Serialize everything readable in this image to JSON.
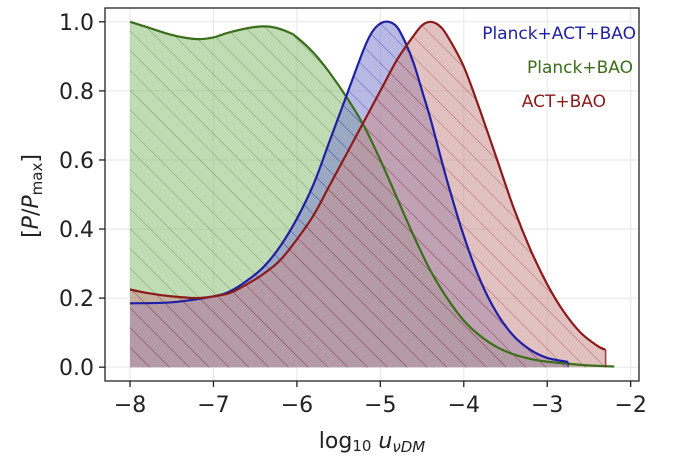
{
  "chart_data": {
    "type": "area",
    "xlabel": "log10 uνDM",
    "ylabel": "[P/Pmax]",
    "xlim": [
      -8.3,
      -1.9
    ],
    "ylim": [
      -0.04,
      1.04
    ],
    "xticks": [
      -8,
      -7,
      -6,
      -5,
      -4,
      -3,
      -2
    ],
    "yticks": [
      0.0,
      0.2,
      0.4,
      0.6,
      0.8,
      1.0
    ],
    "grid": true,
    "legend": "top-right",
    "series": [
      {
        "name": "Planck+BAO",
        "color": "#3a6e1a",
        "fill": "#8bbf76",
        "x": [
          -8.0,
          -7.8,
          -7.5,
          -7.2,
          -7.0,
          -6.8,
          -6.5,
          -6.3,
          -6.1,
          -6.0,
          -5.8,
          -5.6,
          -5.4,
          -5.2,
          -5.0,
          -4.8,
          -4.6,
          -4.4,
          -4.2,
          -4.0,
          -3.8,
          -3.6,
          -3.4,
          -3.2,
          -3.0,
          -2.8,
          -2.6,
          -2.4,
          -2.2
        ],
        "y": [
          1.0,
          0.985,
          0.962,
          0.95,
          0.955,
          0.97,
          0.985,
          0.985,
          0.97,
          0.955,
          0.91,
          0.85,
          0.78,
          0.7,
          0.6,
          0.49,
          0.38,
          0.28,
          0.2,
          0.135,
          0.09,
          0.058,
          0.037,
          0.024,
          0.016,
          0.011,
          0.007,
          0.004,
          0.002
        ]
      },
      {
        "name": "Planck+ACT+BAO",
        "color": "#1f1fa3",
        "fill": "#7f7fcf",
        "x": [
          -8.0,
          -7.5,
          -7.0,
          -6.8,
          -6.6,
          -6.4,
          -6.2,
          -6.0,
          -5.8,
          -5.6,
          -5.4,
          -5.2,
          -5.1,
          -5.0,
          -4.9,
          -4.8,
          -4.7,
          -4.6,
          -4.5,
          -4.4,
          -4.2,
          -4.0,
          -3.8,
          -3.6,
          -3.4,
          -3.2,
          -3.0,
          -2.75
        ],
        "y": [
          0.185,
          0.188,
          0.205,
          0.22,
          0.25,
          0.29,
          0.35,
          0.43,
          0.53,
          0.66,
          0.79,
          0.92,
          0.97,
          0.995,
          1.0,
          0.985,
          0.94,
          0.88,
          0.8,
          0.72,
          0.54,
          0.38,
          0.25,
          0.155,
          0.09,
          0.05,
          0.027,
          0.015
        ]
      },
      {
        "name": "ACT+BAO",
        "color": "#8b1a1a",
        "fill": "#c98f8c",
        "x": [
          -8.0,
          -7.8,
          -7.5,
          -7.2,
          -7.0,
          -6.8,
          -6.6,
          -6.4,
          -6.2,
          -6.0,
          -5.8,
          -5.6,
          -5.4,
          -5.2,
          -5.0,
          -4.8,
          -4.6,
          -4.5,
          -4.4,
          -4.3,
          -4.2,
          -4.0,
          -3.8,
          -3.6,
          -3.4,
          -3.2,
          -3.0,
          -2.8,
          -2.6,
          -2.4,
          -2.3
        ],
        "y": [
          0.225,
          0.215,
          0.205,
          0.2,
          0.205,
          0.215,
          0.24,
          0.27,
          0.31,
          0.37,
          0.44,
          0.53,
          0.62,
          0.71,
          0.8,
          0.89,
          0.96,
          0.99,
          1.0,
          0.99,
          0.96,
          0.87,
          0.74,
          0.6,
          0.46,
          0.34,
          0.24,
          0.16,
          0.1,
          0.062,
          0.05
        ]
      }
    ]
  }
}
